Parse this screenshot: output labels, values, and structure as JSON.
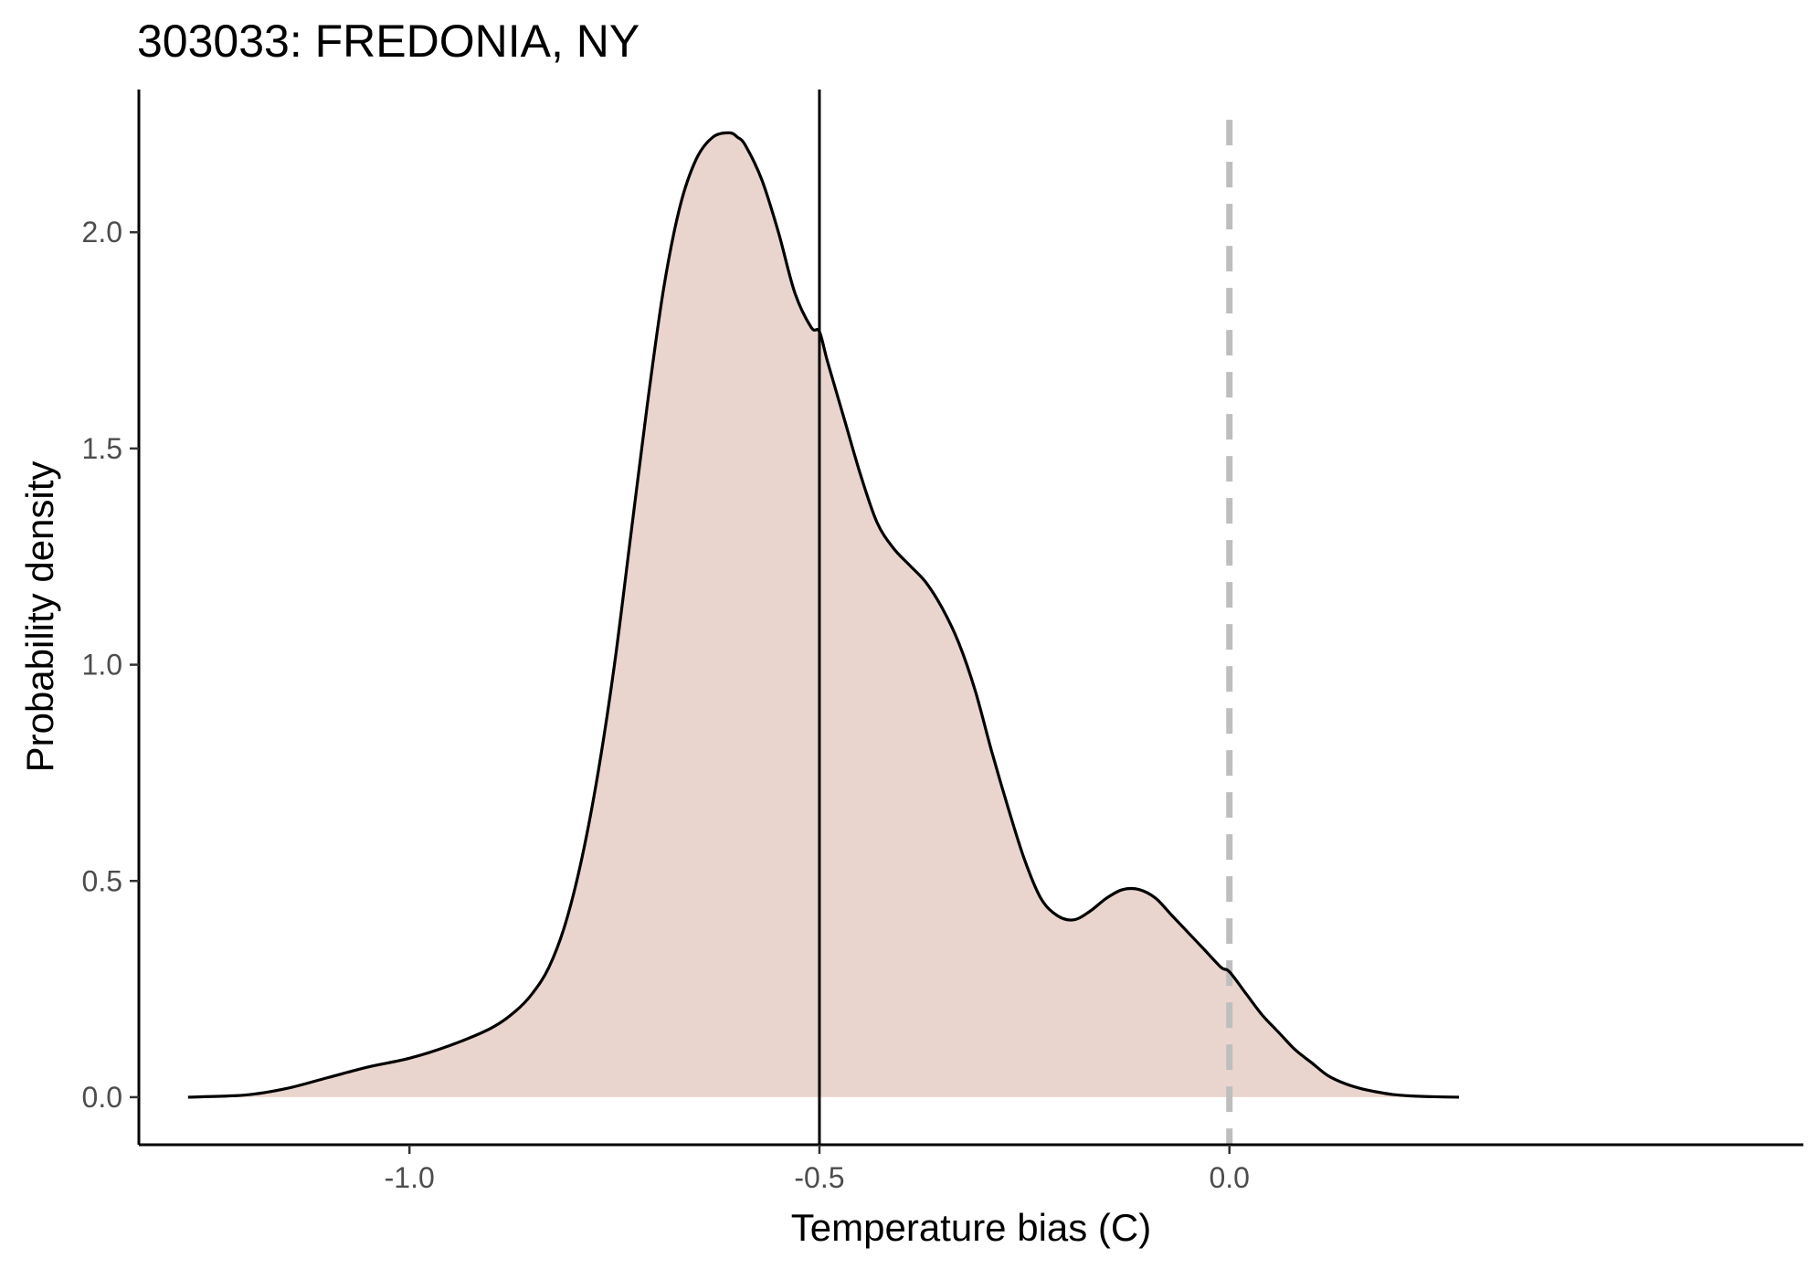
{
  "chart_data": {
    "type": "area",
    "title": "303033: FREDONIA, NY",
    "xlabel": "Temperature bias (C)",
    "ylabel": "Probability density",
    "xlim": [
      -1.33,
      0.7
    ],
    "ylim": [
      -0.11,
      2.33
    ],
    "x_ticks": [
      -1.0,
      -0.5,
      0.0
    ],
    "x_tick_labels": [
      "-1.0",
      "-0.5",
      "0.0"
    ],
    "y_ticks": [
      0.0,
      0.5,
      1.0,
      1.5,
      2.0
    ],
    "y_tick_labels": [
      "0.0",
      "0.5",
      "1.0",
      "1.5",
      "2.0"
    ],
    "grid": false,
    "legend": "none",
    "series": [
      {
        "fill_color": "#e9d5ce",
        "line_color": "#000000",
        "x": [
          -1.27,
          -1.2,
          -1.15,
          -1.1,
          -1.05,
          -1.0,
          -0.95,
          -0.9,
          -0.87,
          -0.85,
          -0.83,
          -0.81,
          -0.79,
          -0.77,
          -0.75,
          -0.73,
          -0.71,
          -0.69,
          -0.67,
          -0.65,
          -0.63,
          -0.61,
          -0.6,
          -0.59,
          -0.57,
          -0.55,
          -0.53,
          -0.51,
          -0.5,
          -0.49,
          -0.47,
          -0.45,
          -0.43,
          -0.41,
          -0.39,
          -0.37,
          -0.35,
          -0.33,
          -0.31,
          -0.29,
          -0.27,
          -0.25,
          -0.23,
          -0.21,
          -0.19,
          -0.17,
          -0.15,
          -0.13,
          -0.11,
          -0.09,
          -0.07,
          -0.05,
          -0.03,
          -0.01,
          0.0,
          0.02,
          0.04,
          0.06,
          0.08,
          0.1,
          0.12,
          0.14,
          0.16,
          0.18,
          0.2,
          0.22,
          0.25,
          0.28
        ],
        "values": [
          0.0,
          0.005,
          0.02,
          0.045,
          0.07,
          0.09,
          0.12,
          0.16,
          0.2,
          0.24,
          0.3,
          0.4,
          0.55,
          0.75,
          1.0,
          1.3,
          1.6,
          1.87,
          2.06,
          2.17,
          2.22,
          2.23,
          2.22,
          2.2,
          2.12,
          2.0,
          1.86,
          1.78,
          1.77,
          1.7,
          1.57,
          1.44,
          1.33,
          1.27,
          1.23,
          1.19,
          1.13,
          1.05,
          0.94,
          0.8,
          0.67,
          0.55,
          0.46,
          0.42,
          0.41,
          0.43,
          0.46,
          0.48,
          0.48,
          0.46,
          0.42,
          0.38,
          0.34,
          0.3,
          0.29,
          0.24,
          0.19,
          0.15,
          0.11,
          0.08,
          0.05,
          0.032,
          0.02,
          0.012,
          0.006,
          0.003,
          0.001,
          0.0
        ]
      }
    ],
    "reference_lines": [
      {
        "orientation": "vertical",
        "x": -0.5,
        "color": "#000000",
        "style": "solid"
      },
      {
        "orientation": "vertical",
        "x": 0.0,
        "color": "#bebebe",
        "style": "dashed"
      }
    ]
  }
}
